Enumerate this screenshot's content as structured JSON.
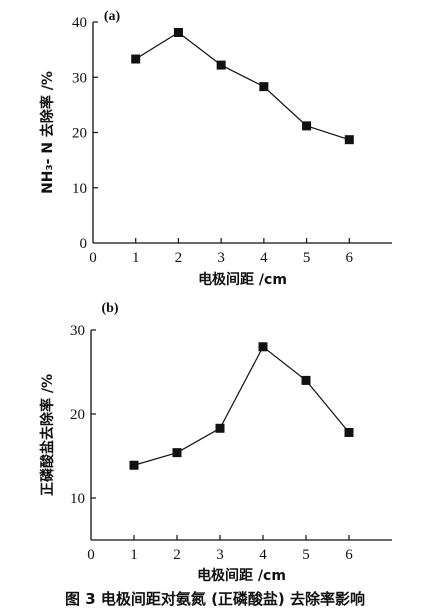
{
  "caption": "图 3   电极间距对氨氮 (正磷酸盐) 去除率影响",
  "chart_data": [
    {
      "type": "line",
      "panel_label": "(a)",
      "xlabel": "电极间距 /cm",
      "ylabel": "NH₃- N 去除率 /%",
      "x": [
        1,
        2,
        3,
        4,
        5,
        6
      ],
      "series": [
        {
          "values": [
            33.3,
            38.1,
            32.2,
            28.3,
            21.2,
            18.7
          ]
        }
      ],
      "xlim": [
        0,
        7
      ],
      "ylim": [
        0,
        40
      ],
      "xticks": [
        "0",
        "1",
        "2",
        "3",
        "4",
        "5",
        "6"
      ],
      "yticks": [
        "0",
        "10",
        "20",
        "30",
        "40"
      ],
      "grid": false,
      "marker": "square",
      "color": "#111111"
    },
    {
      "type": "line",
      "panel_label": "(b)",
      "xlabel": "电极间距 /cm",
      "ylabel": "正磷酸盐去除率 /%",
      "x": [
        1,
        2,
        3,
        4,
        5,
        6
      ],
      "series": [
        {
          "values": [
            13.9,
            15.4,
            18.3,
            28.0,
            24.0,
            17.8
          ]
        }
      ],
      "xlim": [
        0,
        7
      ],
      "ylim": [
        5,
        30
      ],
      "xticks": [
        "0",
        "1",
        "2",
        "3",
        "4",
        "5",
        "6"
      ],
      "yticks": [
        "10",
        "20",
        "30"
      ],
      "grid": false,
      "marker": "square",
      "color": "#111111"
    }
  ]
}
